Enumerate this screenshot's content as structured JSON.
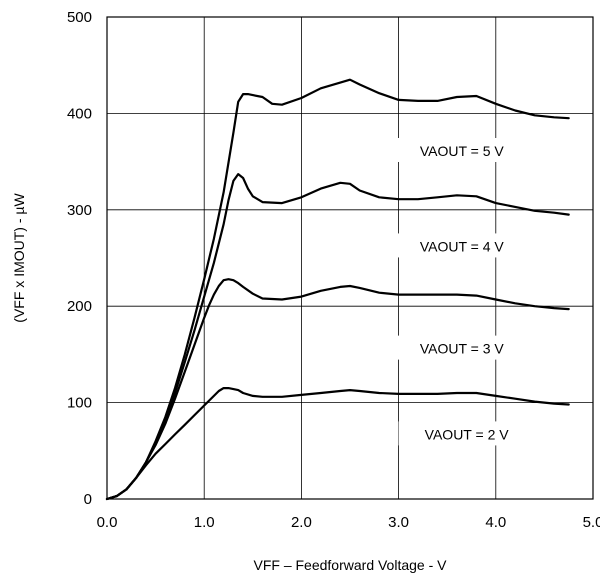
{
  "chart_data": {
    "type": "line",
    "title": "",
    "xlabel": "VFF – Feedforward Voltage - V",
    "ylabel": "(VFF x IMOUT) - µW",
    "xlim": [
      0.0,
      5.0
    ],
    "ylim": [
      0,
      500
    ],
    "x_ticks": [
      "0.0",
      "1.0",
      "2.0",
      "3.0",
      "4.0",
      "5.0"
    ],
    "y_ticks": [
      "0",
      "100",
      "200",
      "300",
      "400",
      "500"
    ],
    "grid": true,
    "line_color": "#000000",
    "series": [
      {
        "name": "VAOUT = 2 V",
        "x": [
          0.0,
          0.1,
          0.2,
          0.3,
          0.4,
          0.5,
          0.6,
          0.7,
          0.8,
          0.9,
          1.0,
          1.1,
          1.15,
          1.2,
          1.25,
          1.3,
          1.35,
          1.4,
          1.5,
          1.6,
          1.8,
          2.0,
          2.2,
          2.4,
          2.5,
          2.6,
          2.8,
          3.0,
          3.2,
          3.4,
          3.6,
          3.8,
          4.0,
          4.2,
          4.4,
          4.6,
          4.75
        ],
        "y": [
          0,
          3,
          10,
          22,
          35,
          47,
          57,
          67,
          77,
          87,
          97,
          107,
          112,
          115,
          115,
          114,
          113,
          110,
          107,
          106,
          106,
          108,
          110,
          112,
          113,
          112,
          110,
          109,
          109,
          109,
          110,
          110,
          107,
          104,
          101,
          99,
          98
        ]
      },
      {
        "name": "VAOUT = 3 V",
        "x": [
          0.0,
          0.1,
          0.2,
          0.3,
          0.4,
          0.5,
          0.6,
          0.7,
          0.8,
          0.9,
          1.0,
          1.05,
          1.1,
          1.15,
          1.2,
          1.25,
          1.3,
          1.35,
          1.4,
          1.5,
          1.6,
          1.8,
          2.0,
          2.2,
          2.4,
          2.5,
          2.6,
          2.8,
          3.0,
          3.2,
          3.4,
          3.6,
          3.8,
          4.0,
          4.2,
          4.4,
          4.6,
          4.75
        ],
        "y": [
          0,
          3,
          10,
          22,
          38,
          56,
          78,
          104,
          132,
          160,
          188,
          201,
          212,
          221,
          227,
          228,
          227,
          224,
          220,
          213,
          208,
          207,
          210,
          216,
          220,
          221,
          219,
          214,
          212,
          212,
          212,
          212,
          211,
          207,
          203,
          200,
          198,
          197
        ]
      },
      {
        "name": "VAOUT = 4 V",
        "x": [
          0.0,
          0.1,
          0.2,
          0.3,
          0.4,
          0.5,
          0.6,
          0.7,
          0.8,
          0.9,
          1.0,
          1.1,
          1.2,
          1.25,
          1.3,
          1.35,
          1.4,
          1.45,
          1.5,
          1.6,
          1.8,
          2.0,
          2.2,
          2.4,
          2.5,
          2.6,
          2.8,
          3.0,
          3.2,
          3.4,
          3.6,
          3.8,
          4.0,
          4.2,
          4.4,
          4.6,
          4.75
        ],
        "y": [
          0,
          3,
          10,
          22,
          38,
          58,
          82,
          110,
          142,
          175,
          210,
          245,
          285,
          310,
          330,
          337,
          333,
          322,
          314,
          308,
          307,
          313,
          322,
          328,
          327,
          320,
          313,
          311,
          311,
          313,
          315,
          314,
          307,
          303,
          299,
          297,
          295
        ]
      },
      {
        "name": "VAOUT = 5 V",
        "x": [
          0.0,
          0.1,
          0.2,
          0.3,
          0.4,
          0.5,
          0.6,
          0.7,
          0.8,
          0.9,
          1.0,
          1.1,
          1.2,
          1.3,
          1.35,
          1.4,
          1.45,
          1.5,
          1.6,
          1.7,
          1.8,
          2.0,
          2.2,
          2.4,
          2.5,
          2.6,
          2.8,
          3.0,
          3.2,
          3.4,
          3.6,
          3.8,
          4.0,
          4.2,
          4.4,
          4.6,
          4.75
        ],
        "y": [
          0,
          3,
          10,
          22,
          38,
          60,
          85,
          115,
          150,
          188,
          228,
          270,
          318,
          380,
          412,
          420,
          420,
          419,
          417,
          410,
          409,
          416,
          426,
          432,
          435,
          430,
          421,
          414,
          413,
          413,
          417,
          418,
          410,
          403,
          398,
          396,
          395
        ]
      }
    ],
    "annotations": [
      {
        "text": "VAOUT = 5 V",
        "x": 3.65,
        "y": 361
      },
      {
        "text": "VAOUT = 4 V",
        "x": 3.65,
        "y": 262
      },
      {
        "text": "VAOUT = 3 V",
        "x": 3.65,
        "y": 156
      },
      {
        "text": "VAOUT = 2 V",
        "x": 3.7,
        "y": 67
      }
    ]
  }
}
